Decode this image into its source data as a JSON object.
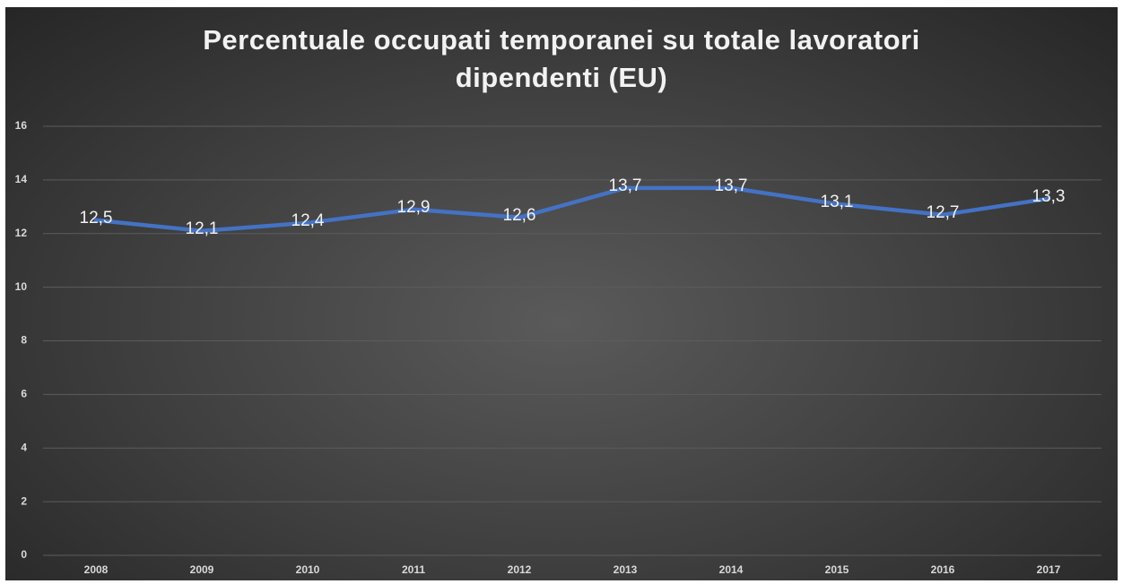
{
  "chart_data": {
    "type": "line",
    "title": "Percentuale occupati temporanei su totale lavoratori dipendenti (EU)",
    "categories": [
      "2008",
      "2009",
      "2010",
      "2011",
      "2012",
      "2013",
      "2014",
      "2015",
      "2016",
      "2017"
    ],
    "series": [
      {
        "name": "Percentuale",
        "color": "#4472c4",
        "values": [
          12.5,
          12.1,
          12.4,
          12.9,
          12.6,
          13.7,
          13.7,
          13.1,
          12.7,
          13.3
        ],
        "value_labels": [
          "12,5",
          "12,1",
          "12,4",
          "12,9",
          "12,6",
          "13,7",
          "13,7",
          "13,1",
          "12,7",
          "13,3"
        ]
      }
    ],
    "ylim": [
      0,
      16
    ],
    "yticks": [
      0,
      2,
      4,
      6,
      8,
      10,
      12,
      14,
      16
    ],
    "grid": true
  }
}
